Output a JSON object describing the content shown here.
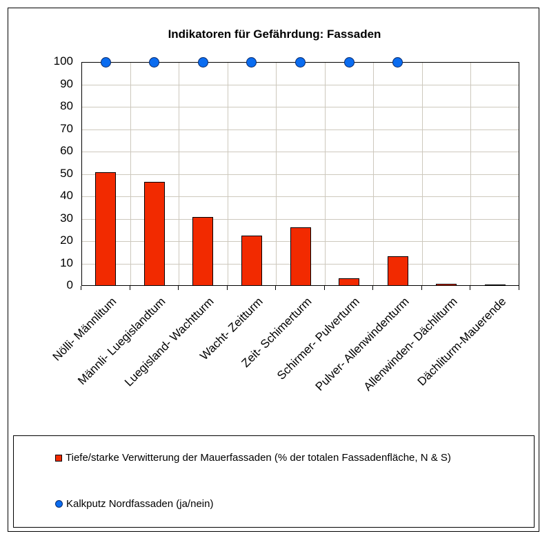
{
  "chart_data": {
    "type": "bar",
    "title": "Indikatoren für Gefährdung: Fassaden",
    "xlabel": "",
    "ylabel": "",
    "ylim": [
      0,
      100
    ],
    "yticks": [
      0,
      10,
      20,
      30,
      40,
      50,
      60,
      70,
      80,
      90,
      100
    ],
    "grid": true,
    "legend_position": "bottom",
    "categories": [
      "Nölli- Männlitum",
      "Männli- Luegislandtum",
      "Luegisland- Wachtturm",
      "Wacht- Zeitturm",
      "Zeit- Schimerturm",
      "Schirmer- Pulverturm",
      "Pulver- Allenwindenturm",
      "Allenwinden- Dächliturm",
      "Dächliturm-Mauerende"
    ],
    "series": [
      {
        "name": "Tiefe/starke Verwitterung der Mauerfassaden (% der totalen Fassadenfläche, N & S)",
        "type": "bar",
        "color": "#f22a00",
        "values": [
          50.8,
          46.5,
          30.8,
          22.5,
          26.2,
          3.4,
          13.2,
          1.0,
          0.6
        ]
      },
      {
        "name": "Kalkputz Nordfassaden (ja/nein)",
        "type": "scatter",
        "color": "#0a6cf0",
        "values": [
          100,
          100,
          100,
          100,
          100,
          100,
          100,
          null,
          null
        ]
      }
    ]
  }
}
